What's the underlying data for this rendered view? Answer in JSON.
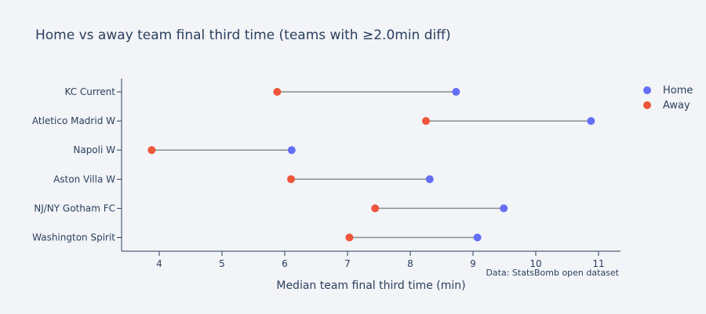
{
  "chart_data": {
    "type": "scatter",
    "subtype": "dumbbell",
    "title": "Home vs away team final third time (teams with ≥2.0min diff)",
    "xlabel": "Median team final third time (min)",
    "ylabel": "",
    "xlim": [
      3.4,
      11.35
    ],
    "xticks": [
      4,
      5,
      6,
      7,
      8,
      9,
      10,
      11
    ],
    "categories": [
      "KC Current",
      "Atletico Madrid W",
      "Napoli W",
      "Aston Villa W",
      "NJ/NY Gotham FC",
      "Washington Spirit"
    ],
    "series": [
      {
        "name": "Home",
        "color": "#636efa",
        "values": [
          8.73,
          10.88,
          6.11,
          8.31,
          9.49,
          9.07
        ]
      },
      {
        "name": "Away",
        "color": "#ef553b",
        "values": [
          5.88,
          8.25,
          3.88,
          6.1,
          7.44,
          7.03
        ]
      }
    ],
    "connector_color": "#8c8c8c",
    "grid": false,
    "legend": {
      "placement": "top-right",
      "entries": [
        "Home",
        "Away"
      ]
    },
    "annotation": "Data: StatsBomb open dataset"
  }
}
